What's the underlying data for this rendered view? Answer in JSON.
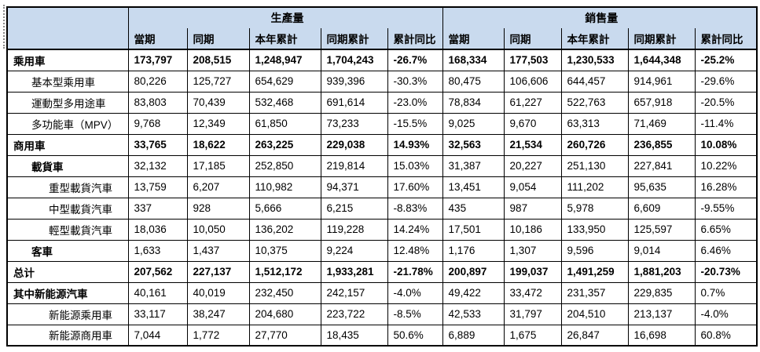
{
  "colors": {
    "header_bg": "#c9daee",
    "border": "#000000",
    "text": "#000000"
  },
  "chart_data": {
    "type": "table",
    "group_headers": [
      {
        "label": "生產量",
        "span": 5
      },
      {
        "label": "銷售量",
        "span": 5
      }
    ],
    "sub_headers": [
      "當期",
      "同期",
      "本年累計",
      "同期累計",
      "累計同比"
    ],
    "rows": [
      {
        "label": "乘用車",
        "indent": 0,
        "bold_label": true,
        "bold_values": true,
        "values": [
          "173,797",
          "208,515",
          "1,248,947",
          "1,704,243",
          "-26.7%",
          "168,334",
          "177,503",
          "1,230,533",
          "1,644,348",
          "-25.2%"
        ]
      },
      {
        "label": "基本型乘用車",
        "indent": 1,
        "bold_label": false,
        "bold_values": false,
        "values": [
          "80,226",
          "125,727",
          "654,629",
          "939,396",
          "-30.3%",
          "80,475",
          "106,606",
          "644,457",
          "914,961",
          "-29.6%"
        ]
      },
      {
        "label": "運動型多用途車",
        "indent": 1,
        "bold_label": false,
        "bold_values": false,
        "values": [
          "83,803",
          "70,439",
          "532,468",
          "691,614",
          "-23.0%",
          "78,834",
          "61,227",
          "522,763",
          "657,918",
          "-20.5%"
        ]
      },
      {
        "label": "多功能車（MPV）",
        "indent": 1,
        "bold_label": false,
        "bold_values": false,
        "values": [
          "9,768",
          "12,349",
          "61,850",
          "73,233",
          "-15.5%",
          "9,025",
          "9,670",
          "63,313",
          "71,469",
          "-11.4%"
        ]
      },
      {
        "label": "商用車",
        "indent": 0,
        "bold_label": true,
        "bold_values": true,
        "values": [
          "33,765",
          "18,622",
          "263,225",
          "229,038",
          "14.93%",
          "32,563",
          "21,534",
          "260,726",
          "236,855",
          "10.08%"
        ]
      },
      {
        "label": "載貨車",
        "indent": 1,
        "bold_label": true,
        "bold_values": false,
        "values": [
          "32,132",
          "17,185",
          "252,850",
          "219,814",
          "15.03%",
          "31,387",
          "20,227",
          "251,130",
          "227,841",
          "10.22%"
        ]
      },
      {
        "label": "重型載貨汽車",
        "indent": 2,
        "bold_label": false,
        "bold_values": false,
        "values": [
          "13,759",
          "6,207",
          "110,982",
          "94,371",
          "17.60%",
          "13,451",
          "9,054",
          "111,202",
          "95,635",
          "16.28%"
        ]
      },
      {
        "label": "中型載貨汽車",
        "indent": 2,
        "bold_label": false,
        "bold_values": false,
        "values": [
          "337",
          "928",
          "5,666",
          "6,215",
          "-8.83%",
          "435",
          "987",
          "5,978",
          "6,609",
          "-9.55%"
        ]
      },
      {
        "label": "輕型載貨汽車",
        "indent": 2,
        "bold_label": false,
        "bold_values": false,
        "values": [
          "18,036",
          "10,050",
          "136,202",
          "119,228",
          "14.24%",
          "17,501",
          "10,186",
          "133,950",
          "125,597",
          "6.65%"
        ]
      },
      {
        "label": "客車",
        "indent": 1,
        "bold_label": true,
        "bold_values": false,
        "values": [
          "1,633",
          "1,437",
          "10,375",
          "9,224",
          "12.48%",
          "1,176",
          "1,307",
          "9,596",
          "9,014",
          "6.46%"
        ]
      },
      {
        "label": "总计",
        "indent": 0,
        "bold_label": true,
        "bold_values": true,
        "values": [
          "207,562",
          "227,137",
          "1,512,172",
          "1,933,281",
          "-21.78%",
          "200,897",
          "199,037",
          "1,491,259",
          "1,881,203",
          "-20.73%"
        ]
      },
      {
        "label": "其中新能源汽車",
        "indent": 0,
        "bold_label": true,
        "bold_values": false,
        "values": [
          "40,161",
          "40,019",
          "232,450",
          "242,157",
          "-4.0%",
          "49,422",
          "33,472",
          "231,357",
          "229,835",
          "0.7%"
        ]
      },
      {
        "label": "新能源乘用車",
        "indent": 2,
        "bold_label": false,
        "bold_values": false,
        "values": [
          "33,117",
          "38,247",
          "204,680",
          "223,722",
          "-8.5%",
          "42,533",
          "31,797",
          "204,510",
          "213,137",
          "-4.0%"
        ]
      },
      {
        "label": "新能源商用車",
        "indent": 2,
        "bold_label": false,
        "bold_values": false,
        "values": [
          "7,044",
          "1,772",
          "27,770",
          "18,435",
          "50.6%",
          "6,889",
          "1,675",
          "26,847",
          "16,698",
          "60.8%"
        ]
      }
    ]
  }
}
